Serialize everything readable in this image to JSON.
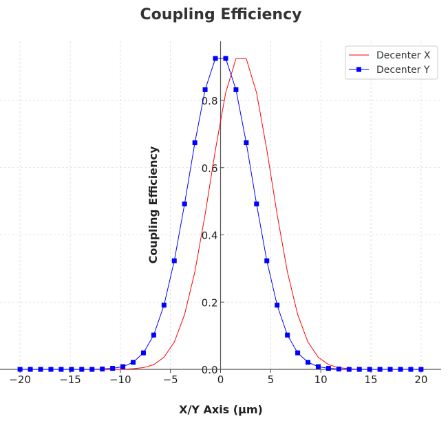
{
  "chart_data": {
    "type": "line",
    "title": "Coupling Efficiency",
    "xlabel": "X/Y Axis (µm)",
    "ylabel": "Coupling Efficiency",
    "xlim": [
      -22,
      22
    ],
    "ylim": [
      0,
      0.976
    ],
    "grid": true,
    "legend_position": "top-right",
    "x_ticks": [
      -20,
      -15,
      -10,
      -5,
      0,
      5,
      10,
      15,
      20
    ],
    "x_tick_labels": [
      "−20",
      "−15",
      "−10",
      "−5",
      "0",
      "5",
      "10",
      "15",
      "20"
    ],
    "y_ticks": [
      0,
      0.2,
      0.4,
      0.6,
      0.8
    ],
    "y_tick_labels": [
      "0.0",
      "0.2",
      "0.4",
      "0.6",
      "0.8"
    ],
    "x": {
      "start": -20,
      "stop": 20,
      "count": 40
    },
    "series": [
      {
        "name": "Decenter X",
        "color": "#ff0000",
        "marker": "none",
        "values": [
          0,
          0,
          0,
          0,
          0,
          0,
          0,
          0,
          0,
          0,
          0,
          0.002,
          0.005,
          0.014,
          0.036,
          0.081,
          0.163,
          0.29,
          0.461,
          0.653,
          0.823,
          0.924,
          0.924,
          0.823,
          0.653,
          0.461,
          0.29,
          0.163,
          0.081,
          0.036,
          0.014,
          0.005,
          0.002,
          0,
          0,
          0,
          0,
          0,
          0,
          0
        ]
      },
      {
        "name": "Decenter Y",
        "color": "#0000ff",
        "marker": "square",
        "values": [
          0,
          0,
          0,
          0,
          0,
          0,
          0,
          0,
          0.001,
          0.003,
          0.008,
          0.021,
          0.049,
          0.102,
          0.191,
          0.323,
          0.492,
          0.674,
          0.832,
          0.925,
          0.925,
          0.832,
          0.674,
          0.492,
          0.323,
          0.191,
          0.102,
          0.049,
          0.021,
          0.008,
          0.003,
          0.001,
          0,
          0,
          0,
          0,
          0,
          0,
          0,
          0
        ]
      }
    ]
  }
}
